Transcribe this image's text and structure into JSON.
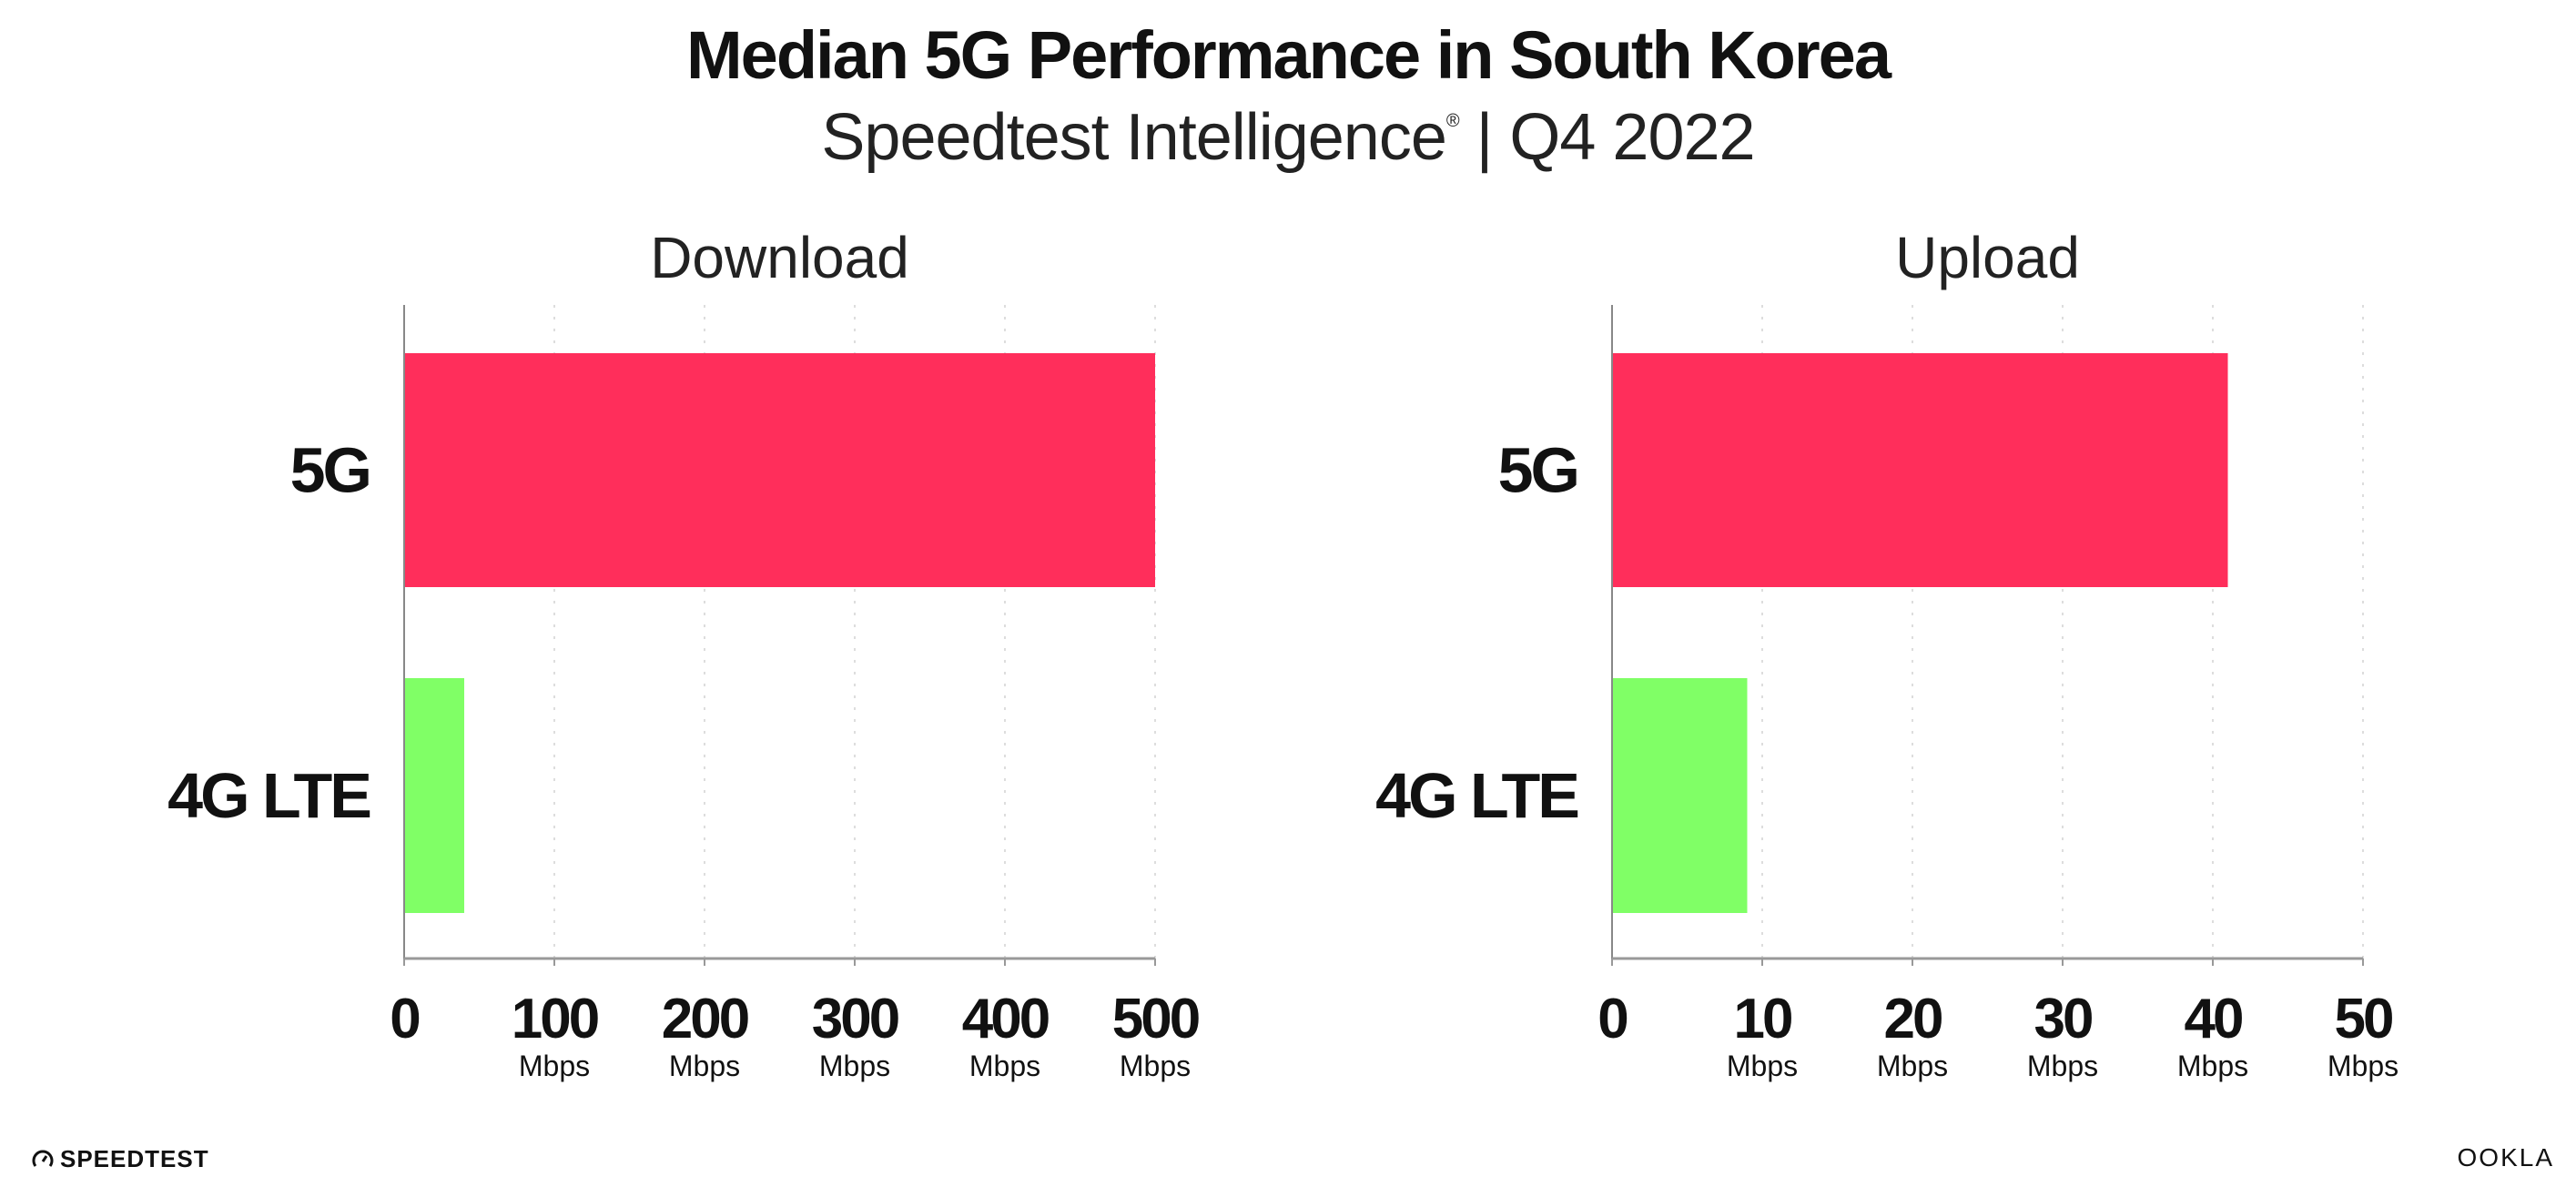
{
  "title": "Median 5G Performance in South Korea",
  "subtitle": {
    "main": "Speedtest Intelligence",
    "mark": "®",
    "period": "| Q4 2022"
  },
  "logos": {
    "left": "SPEEDTEST",
    "right": "OOKLA"
  },
  "chart_data": [
    {
      "type": "bar",
      "orientation": "horizontal",
      "title": "Download",
      "categories": [
        "5G",
        "4G LTE"
      ],
      "values": [
        500,
        40
      ],
      "colors": [
        "#ff2e5b",
        "#80ff66"
      ],
      "xlim": [
        0,
        500
      ],
      "ticks": [
        "0",
        "100",
        "200",
        "300",
        "400",
        "500"
      ],
      "tick_values": [
        0,
        100,
        200,
        300,
        400,
        500
      ],
      "unit": "Mbps",
      "grid": "vertical dotted"
    },
    {
      "type": "bar",
      "orientation": "horizontal",
      "title": "Upload",
      "categories": [
        "5G",
        "4G LTE"
      ],
      "values": [
        41,
        9
      ],
      "colors": [
        "#ff2e5b",
        "#80ff66"
      ],
      "xlim": [
        0,
        50
      ],
      "ticks": [
        "0",
        "10",
        "20",
        "30",
        "40",
        "50"
      ],
      "tick_values": [
        0,
        10,
        20,
        30,
        40,
        50
      ],
      "unit": "Mbps",
      "grid": "vertical dotted"
    }
  ]
}
